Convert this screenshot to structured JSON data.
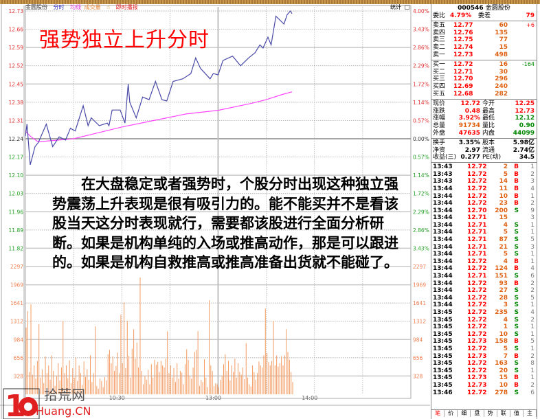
{
  "toolbar": {
    "stock": "金圆股份",
    "minute": "分时",
    "avg": "均线",
    "volume": "成交量",
    "broadcast": "即时播报",
    "stats": "统计"
  },
  "overlay": {
    "title": "强势独立上升分时",
    "lines": [
      "　　在大盘稳定或者强势时，个股分时出现这种独立强",
      "势震荡上升表现是很有吸引力的。能不能买并不是看该",
      "股当天这分时表现就行，需要都该股进行全面分析研",
      "断。如果是机构单纯的入场或推高动作，那是可以跟进",
      "的。如果是机构自救推高或推高准备出货就不能碰了。"
    ]
  },
  "colors": {
    "price_line": "#4848a8",
    "avg_line": "#ff44ff",
    "volume_bar": "#f39a60",
    "up": "#ff0000",
    "down": "#008800"
  },
  "chart_data": {
    "type": "line",
    "price_ticks": [
      "12.73",
      "12.66",
      "12.59",
      "12.52",
      "12.45",
      "12.38",
      "12.31",
      "12.24",
      "12.17",
      "12.10",
      "12.03",
      "11.96",
      "11.89",
      "11.82"
    ],
    "pct_ticks": [
      "4.00%",
      "3.43%",
      "2.86%",
      "2.29%",
      "1.72%",
      "1.14%",
      "0.57%",
      "0.00%",
      "0.57%",
      "1.14%",
      "1.72%",
      "2.29%",
      "2.86%",
      "3.43%"
    ],
    "volume_ticks": [
      "2297",
      "1969",
      "1641",
      "1312",
      "984",
      "656",
      "328"
    ],
    "time_ticks": [
      "10:30",
      "13:00",
      "14:00"
    ],
    "prev_close": 12.24,
    "price_range": [
      11.75,
      12.73
    ],
    "volume_range": [
      0,
      2297
    ],
    "price_series": [
      [
        "09:30",
        12.25
      ],
      [
        "09:31",
        12.296
      ],
      [
        "09:33",
        12.14
      ],
      [
        "09:36",
        12.21
      ],
      [
        "09:38",
        12.225
      ],
      [
        "09:43",
        12.296
      ],
      [
        "09:47",
        12.21
      ],
      [
        "09:51",
        12.247
      ],
      [
        "09:55",
        12.235
      ],
      [
        "09:58",
        12.28
      ],
      [
        "10:01",
        12.27
      ],
      [
        "10:06",
        12.367
      ],
      [
        "10:09",
        12.29
      ],
      [
        "10:11",
        12.32
      ],
      [
        "10:16",
        12.29
      ],
      [
        "10:21",
        12.3
      ],
      [
        "10:22",
        12.29
      ],
      [
        "10:24",
        12.35
      ],
      [
        "10:29",
        12.35
      ],
      [
        "10:32",
        12.3
      ],
      [
        "10:34",
        12.45
      ],
      [
        "10:35",
        12.38
      ],
      [
        "10:39",
        12.32
      ],
      [
        "10:43",
        12.4
      ],
      [
        "10:47",
        12.39
      ],
      [
        "10:51",
        12.46
      ],
      [
        "10:55",
        12.39
      ],
      [
        "10:58",
        12.385
      ],
      [
        "11:02",
        12.46
      ],
      [
        "11:08",
        12.47
      ],
      [
        "11:13",
        12.49
      ],
      [
        "11:16",
        12.55
      ],
      [
        "11:19",
        12.51
      ],
      [
        "11:25",
        12.47
      ],
      [
        "11:27",
        12.49
      ],
      [
        "13:00",
        12.485
      ],
      [
        "13:03",
        12.54
      ],
      [
        "13:09",
        12.557
      ],
      [
        "13:14",
        12.52
      ],
      [
        "13:19",
        12.55
      ],
      [
        "13:23",
        12.57
      ],
      [
        "13:26",
        12.6
      ],
      [
        "13:28",
        12.588
      ],
      [
        "13:31",
        12.63
      ],
      [
        "13:33",
        12.6
      ],
      [
        "13:36",
        12.71
      ],
      [
        "13:41",
        12.68
      ],
      [
        "13:43",
        12.716
      ],
      [
        "13:45",
        12.73
      ],
      [
        "13:46",
        12.72
      ]
    ],
    "avg_series": [
      [
        "09:30",
        12.27
      ],
      [
        "09:33",
        12.25
      ],
      [
        "09:38",
        12.228
      ],
      [
        "09:45",
        12.232
      ],
      [
        "10:00",
        12.24
      ],
      [
        "10:10",
        12.255
      ],
      [
        "10:30",
        12.285
      ],
      [
        "10:50",
        12.31
      ],
      [
        "11:10",
        12.335
      ],
      [
        "13:00",
        12.349
      ],
      [
        "13:20",
        12.375
      ],
      [
        "13:30",
        12.39
      ],
      [
        "13:40",
        12.41
      ],
      [
        "13:46",
        12.42
      ]
    ],
    "volume": [
      1200,
      1494,
      400,
      1618,
      350,
      520,
      280,
      600,
      1260,
      300,
      450,
      200,
      680,
      380,
      520,
      260,
      700,
      420,
      150,
      330,
      560,
      250,
      480,
      1320,
      380,
      520,
      290,
      610,
      200,
      470,
      300,
      660,
      240,
      520,
      380,
      170,
      590,
      310,
      450,
      260,
      700,
      220,
      380,
      1220,
      150,
      100,
      280,
      240,
      130,
      310,
      250,
      720,
      800,
      560,
      680,
      420,
      510,
      750,
      380,
      1430,
      560,
      1650,
      470,
      1320,
      690,
      300,
      820,
      1170,
      640,
      930,
      480,
      2100,
      420,
      180,
      330,
      260,
      440,
      180,
      540,
      300,
      620,
      530,
      580,
      400,
      600,
      520,
      480,
      640,
      1130,
      380,
      520,
      300,
      470,
      220,
      560,
      280,
      420,
      390,
      180,
      540,
      810,
      620,
      330,
      280,
      480,
      760,
      800,
      1135,
      150,
      260,
      220,
      630,
      300,
      130,
      1690,
      520,
      420,
      150,
      200,
      180,
      130,
      260,
      330,
      540,
      720,
      420,
      600,
      250,
      520,
      400,
      640,
      300,
      560,
      400,
      350,
      480,
      270,
      920,
      300,
      180,
      140,
      520,
      400,
      260,
      380,
      590,
      520,
      480,
      700,
      1540,
      740,
      580,
      520,
      600,
      1320,
      520,
      700,
      500,
      560,
      680,
      520,
      700,
      1170,
      760,
      620,
      400,
      220
    ]
  },
  "panel": {
    "code": "000546",
    "name": "金圆股份",
    "weibi": {
      "l1": "委比",
      "v1": "4.79%",
      "l2": "委差",
      "v2": "79"
    },
    "asks": [
      {
        "l": "卖五",
        "p": "12.77",
        "v": "60",
        "c": "+6"
      },
      {
        "l": "卖四",
        "p": "12.76",
        "v": "135",
        "c": ""
      },
      {
        "l": "卖三",
        "p": "12.75",
        "v": "77",
        "c": ""
      },
      {
        "l": "卖二",
        "p": "12.74",
        "v": "15",
        "c": ""
      },
      {
        "l": "卖一",
        "p": "12.73",
        "v": "498",
        "c": ""
      }
    ],
    "bids": [
      {
        "l": "买一",
        "p": "12.72",
        "v": "16",
        "c": "-164"
      },
      {
        "l": "买二",
        "p": "12.71",
        "v": "30",
        "c": ""
      },
      {
        "l": "买三",
        "p": "12.70",
        "v": "296",
        "c": ""
      },
      {
        "l": "买四",
        "p": "12.69",
        "v": "240",
        "c": ""
      },
      {
        "l": "买五",
        "p": "12.68",
        "v": "282",
        "c": ""
      }
    ],
    "stats": [
      {
        "l1": "现价",
        "v1": "12.72",
        "c1": "red",
        "l2": "今开",
        "v2": "12.25",
        "c2": "red"
      },
      {
        "l1": "涨跌",
        "v1": "0.48",
        "c1": "red",
        "l2": "最高",
        "v2": "12.73",
        "c2": "red"
      },
      {
        "l1": "涨幅",
        "v1": "3.92%",
        "c1": "red",
        "l2": "最低",
        "v2": "12.12",
        "c2": "grn"
      },
      {
        "l1": "总量",
        "v1": "91734",
        "c1": "org",
        "l2": "量比",
        "v2": "0.90",
        "c2": "grn"
      },
      {
        "l1": "外盘",
        "v1": "47635",
        "c1": "red",
        "l2": "内盘",
        "v2": "44099",
        "c2": "grn"
      }
    ],
    "stats2": [
      {
        "l1": "换手",
        "v1": "3.35%",
        "l2": "股本",
        "v2": "5.98亿"
      },
      {
        "l1": "净资",
        "v1": "2.97",
        "l2": "流通",
        "v2": "2.74亿"
      },
      {
        "l1": "收益(三)",
        "v1": "0.277",
        "l2": "PE(动)",
        "v2": "34.5"
      }
    ],
    "trades": [
      [
        "13:43",
        "12.72",
        "2",
        "B",
        "1"
      ],
      [
        "13:43",
        "12.72",
        "5",
        "B",
        "2"
      ],
      [
        "13:43",
        "12.72",
        "14",
        "B",
        "3"
      ],
      [
        "13:44",
        "12.72",
        "11",
        "B",
        "4"
      ],
      [
        "13:44",
        "12.72",
        "10",
        "B",
        "1"
      ],
      [
        "13:44",
        "12.72",
        "23",
        "B",
        "2"
      ],
      [
        "13:44",
        "12.70",
        "200",
        "S",
        "9"
      ],
      [
        "13:44",
        "12.71",
        "15",
        "",
        "3"
      ],
      [
        "13:44",
        "12.71",
        "4",
        "S",
        "1"
      ],
      [
        "13:44",
        "12.71",
        "5",
        "S",
        "1"
      ],
      [
        "13:44",
        "12.71",
        "87",
        "S",
        "5"
      ],
      [
        "13:44",
        "12.71",
        "21",
        "S",
        "3"
      ],
      [
        "13:44",
        "12.71",
        "5",
        "S",
        "1"
      ],
      [
        "13:44",
        "12.72",
        "4",
        "B",
        "1"
      ],
      [
        "13:44",
        "12.72",
        "124",
        "B",
        "4"
      ],
      [
        "13:44",
        "12.71",
        "151",
        "S",
        "6"
      ],
      [
        "13:44",
        "12.72",
        "93",
        "B",
        "2"
      ],
      [
        "13:44",
        "12.72",
        "27",
        "S",
        "2"
      ],
      [
        "13:44",
        "12.72",
        "28",
        "S",
        "5"
      ],
      [
        "13:44",
        "12.72",
        "3",
        "S",
        "1"
      ],
      [
        "13:45",
        "12.72",
        "235",
        "S",
        "4"
      ],
      [
        "13:45",
        "12.72",
        "4",
        "S",
        "2"
      ],
      [
        "13:45",
        "12.72",
        "1",
        "S",
        "1"
      ],
      [
        "13:45",
        "12.72",
        "10",
        "S",
        "1"
      ],
      [
        "13:45",
        "12.73",
        "158",
        "B",
        "5"
      ],
      [
        "13:45",
        "12.72",
        "5",
        "S",
        "1"
      ],
      [
        "13:45",
        "12.73",
        "7",
        "B",
        "2"
      ],
      [
        "13:45",
        "12.72",
        "163",
        "S",
        "8"
      ],
      [
        "13:45",
        "12.72",
        "20",
        "S",
        "1"
      ],
      [
        "13:45",
        "12.73",
        "15",
        "B",
        "1"
      ],
      [
        "13:45",
        "12.73",
        "10",
        "B",
        "2"
      ],
      [
        "13:46",
        "12.72",
        "278",
        "S",
        "6"
      ]
    ],
    "tabs": [
      "笔",
      "价",
      "细",
      "盘",
      "势",
      "联",
      "值",
      "主"
    ]
  },
  "watermark": {
    "number": "10",
    "site": "拾荒网",
    "domain": "Huang.CN"
  }
}
